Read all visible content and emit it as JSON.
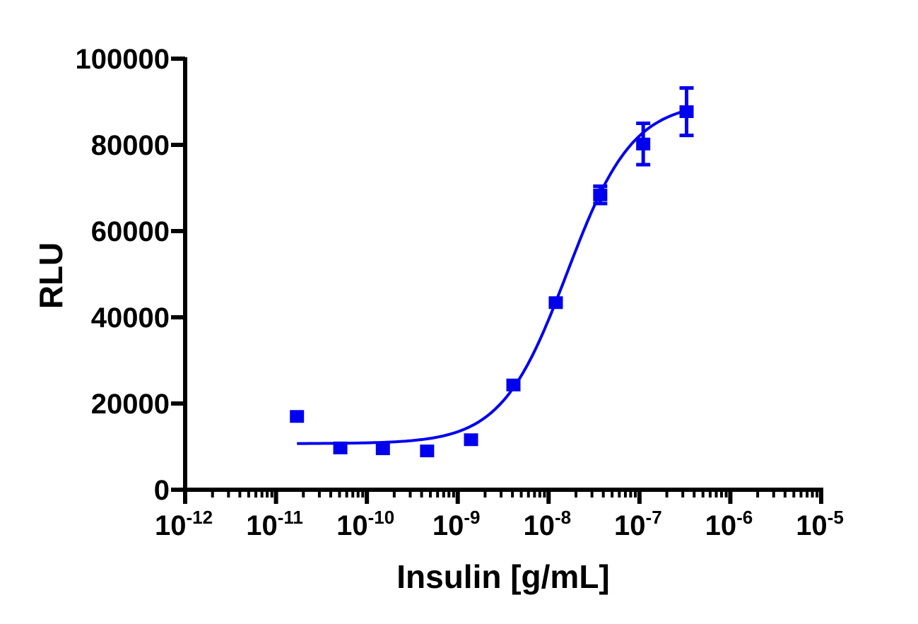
{
  "chart_data": {
    "type": "scatter",
    "title": "",
    "xlabel": "Insulin [g/mL]",
    "ylabel": "RLU",
    "xscale": "log",
    "xlim": [
      1e-12,
      1e-05
    ],
    "ylim": [
      0,
      100000
    ],
    "x_ticks": [
      {
        "base": "10",
        "exp": "-12"
      },
      {
        "base": "10",
        "exp": "-11"
      },
      {
        "base": "10",
        "exp": "-10"
      },
      {
        "base": "10",
        "exp": "-9"
      },
      {
        "base": "10",
        "exp": "-8"
      },
      {
        "base": "10",
        "exp": "-7"
      },
      {
        "base": "10",
        "exp": "-6"
      },
      {
        "base": "10",
        "exp": "-5"
      }
    ],
    "y_ticks": [
      "0",
      "20000",
      "40000",
      "60000",
      "80000",
      "100000"
    ],
    "y_tick_values": [
      0,
      20000,
      40000,
      60000,
      80000,
      100000
    ],
    "grid": false,
    "legend": "none",
    "color": "#0000ee",
    "marker": "square",
    "points": [
      {
        "x": 1.7e-11,
        "y": 17000,
        "err": 0
      },
      {
        "x": 5.1e-11,
        "y": 9700,
        "err": 0
      },
      {
        "x": 1.5e-10,
        "y": 9500,
        "err": 0
      },
      {
        "x": 4.6e-10,
        "y": 9000,
        "err": 0
      },
      {
        "x": 1.4e-09,
        "y": 11600,
        "err": 0
      },
      {
        "x": 4.1e-09,
        "y": 24300,
        "err": 700
      },
      {
        "x": 1.2e-08,
        "y": 43400,
        "err": 600
      },
      {
        "x": 3.7e-08,
        "y": 68400,
        "err": 2000
      },
      {
        "x": 1.1e-07,
        "y": 80200,
        "err": 4800
      },
      {
        "x": 3.3e-07,
        "y": 87700,
        "err": 5500
      }
    ],
    "fit": {
      "model": "4PL",
      "bottom": 10700,
      "top": 90000,
      "ec50": 1.6e-08,
      "hill": 1.2,
      "x_range": [
        1.7e-11,
        3.3e-07
      ]
    }
  }
}
